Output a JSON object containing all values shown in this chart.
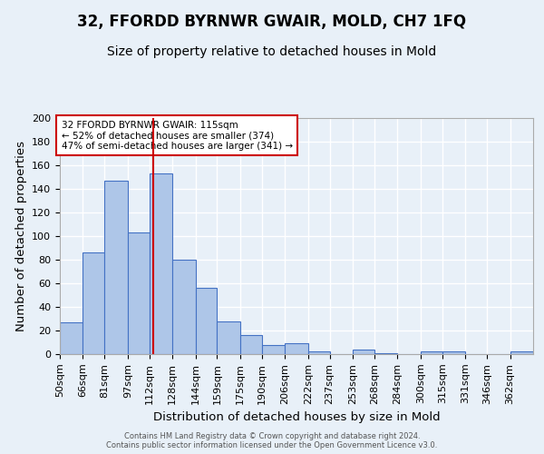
{
  "title": "32, FFORDD BYRNWR GWAIR, MOLD, CH7 1FQ",
  "subtitle": "Size of property relative to detached houses in Mold",
  "xlabel": "Distribution of detached houses by size in Mold",
  "ylabel": "Number of detached properties",
  "footer_line1": "Contains HM Land Registry data © Crown copyright and database right 2024.",
  "footer_line2": "Contains public sector information licensed under the Open Government Licence v3.0.",
  "bar_labels": [
    "50sqm",
    "66sqm",
    "81sqm",
    "97sqm",
    "112sqm",
    "128sqm",
    "144sqm",
    "159sqm",
    "175sqm",
    "190sqm",
    "206sqm",
    "222sqm",
    "237sqm",
    "253sqm",
    "268sqm",
    "284sqm",
    "300sqm",
    "315sqm",
    "331sqm",
    "346sqm",
    "362sqm"
  ],
  "bar_values": [
    27,
    86,
    147,
    103,
    153,
    80,
    56,
    28,
    16,
    8,
    9,
    2,
    0,
    4,
    1,
    0,
    2,
    2,
    0,
    0,
    2
  ],
  "bar_color": "#aec6e8",
  "bar_edge_color": "#4472c4",
  "property_line_x": 115,
  "bin_edges": [
    50,
    66,
    81,
    97,
    112,
    128,
    144,
    159,
    175,
    190,
    206,
    222,
    237,
    253,
    268,
    284,
    300,
    315,
    331,
    346,
    362,
    378
  ],
  "annotation_text_line1": "32 FFORDD BYRNWR GWAIR: 115sqm",
  "annotation_text_line2": "← 52% of detached houses are smaller (374)",
  "annotation_text_line3": "47% of semi-detached houses are larger (341) →",
  "annotation_box_color": "#ffffff",
  "annotation_box_edge": "#cc0000",
  "vline_color": "#cc0000",
  "ylim": [
    0,
    200
  ],
  "yticks": [
    0,
    20,
    40,
    60,
    80,
    100,
    120,
    140,
    160,
    180,
    200
  ],
  "bg_color": "#e8f0f8",
  "grid_color": "#ffffff",
  "title_fontsize": 12,
  "subtitle_fontsize": 10,
  "axis_fontsize": 9.5,
  "tick_fontsize": 8,
  "annotation_fontsize": 7.5,
  "footer_fontsize": 6
}
